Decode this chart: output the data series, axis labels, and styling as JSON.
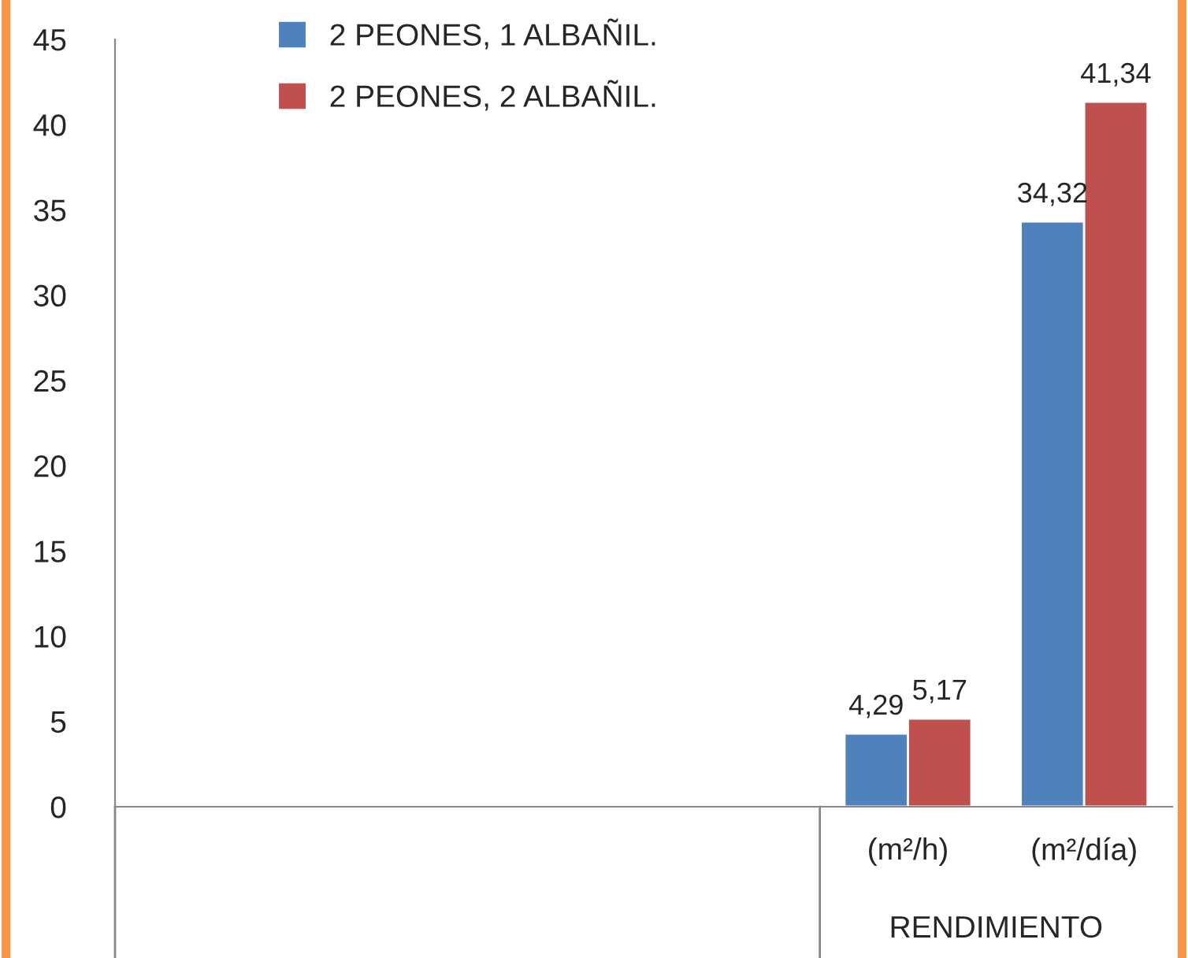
{
  "chart_data": {
    "type": "bar",
    "categories": [
      null,
      null,
      null,
      null,
      "(m²/h)",
      "(m²/día)"
    ],
    "series": [
      {
        "name": "2 PEONES, 1 ALBAÑIL.",
        "color": "#4f81bd",
        "values": [
          null,
          null,
          null,
          null,
          4.29,
          34.32
        ],
        "value_labels": [
          null,
          null,
          null,
          null,
          "4,29",
          "34,32"
        ]
      },
      {
        "name": "2 PEONES, 2 ALBAÑIL.",
        "color": "#c0504d",
        "values": [
          null,
          null,
          null,
          null,
          5.17,
          41.34
        ],
        "value_labels": [
          null,
          null,
          null,
          null,
          "5,17",
          "41,34"
        ]
      }
    ],
    "annotations": [
      "RENDIMIENTO"
    ],
    "ylim": [
      0,
      45
    ],
    "yticks": [
      0,
      5,
      10,
      15,
      20,
      25,
      30,
      35,
      40,
      45
    ],
    "grid": false,
    "legend": "top left"
  }
}
